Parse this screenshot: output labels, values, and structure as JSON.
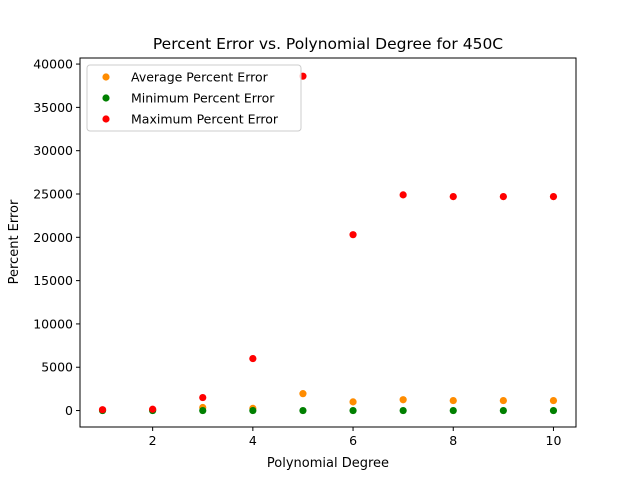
{
  "chart_data": {
    "type": "scatter",
    "title": "Percent Error vs. Polynomial Degree for 450C",
    "xlabel": "Polynomial Degree",
    "ylabel": "Percent Error",
    "xlim": [
      0.55,
      10.45
    ],
    "ylim": [
      -1900,
      40700
    ],
    "xticks": [
      2,
      4,
      6,
      8,
      10
    ],
    "yticks": [
      0,
      5000,
      10000,
      15000,
      20000,
      25000,
      30000,
      35000,
      40000
    ],
    "grid": false,
    "legend_position": "top-left",
    "series": [
      {
        "name": "Average Percent Error",
        "color": "#ff8c00",
        "x": [
          1,
          2,
          3,
          4,
          5,
          6,
          7,
          8,
          9,
          10
        ],
        "y": [
          30,
          80,
          350,
          250,
          1950,
          1000,
          1250,
          1150,
          1150,
          1150
        ]
      },
      {
        "name": "Minimum Percent Error",
        "color": "#008000",
        "x": [
          1,
          2,
          3,
          4,
          5,
          6,
          7,
          8,
          9,
          10
        ],
        "y": [
          0,
          0,
          0,
          0,
          0,
          0,
          0,
          0,
          0,
          0
        ]
      },
      {
        "name": "Maximum Percent Error",
        "color": "#ff0000",
        "x": [
          1,
          2,
          3,
          4,
          5,
          6,
          7,
          8,
          9,
          10
        ],
        "y": [
          100,
          150,
          1500,
          6000,
          38600,
          20300,
          24900,
          24700,
          24700,
          24700
        ]
      }
    ]
  }
}
